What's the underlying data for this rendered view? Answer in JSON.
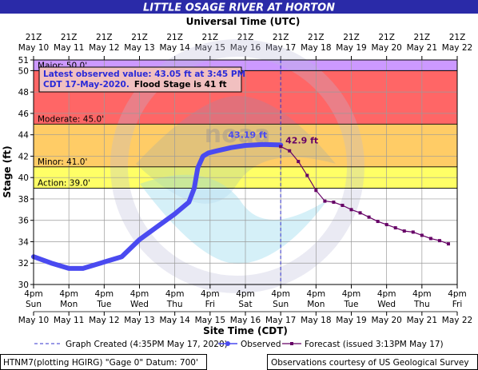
{
  "chart_data": {
    "type": "line",
    "title": "LITTLE OSAGE RIVER AT HORTON",
    "top_axis_title": "Universal Time (UTC)",
    "xlabel": "Site Time (CDT)",
    "ylabel": "Stage (ft)",
    "ylim": [
      30,
      51
    ],
    "y_ticks": [
      30,
      32,
      34,
      36,
      38,
      40,
      42,
      44,
      46,
      48,
      50,
      51
    ],
    "x_range_day": [
      0,
      12
    ],
    "day_ticks": [
      0,
      1,
      2,
      3,
      4,
      5,
      6,
      7,
      8,
      9,
      10,
      11,
      12
    ],
    "x_tick_time_label": "4pm",
    "x_tick_weekdays": [
      "Sun",
      "Mon",
      "Tue",
      "Wed",
      "Thu",
      "Fri",
      "Sat",
      "Sun",
      "Mon",
      "Tue",
      "Wed",
      "Thu",
      "Fri"
    ],
    "x_tick_dates": [
      "May 10",
      "May 11",
      "May 12",
      "May 13",
      "May 14",
      "May 15",
      "May 16",
      "May 17",
      "May 18",
      "May 19",
      "May 20",
      "May 21",
      "May 22"
    ],
    "top_tick_time_label": "21Z",
    "grid": true,
    "stage_bands": [
      {
        "name": "Major",
        "from": 50,
        "to": 51,
        "color": "#cc99ff"
      },
      {
        "name": "Moderate",
        "from": 45,
        "to": 50,
        "color": "#ff6666"
      },
      {
        "name": "Minor",
        "from": 41,
        "to": 45,
        "color": "#ffcc66"
      },
      {
        "name": "Action",
        "from": 39,
        "to": 41,
        "color": "#ffff66"
      }
    ],
    "threshold_labels": [
      {
        "text": "Major: 50.0'",
        "stage": 50.0
      },
      {
        "text": "Moderate: 45.0'",
        "stage": 45.0
      },
      {
        "text": "Minor: 41.0'",
        "stage": 41.0
      },
      {
        "text": "Action: 39.0'",
        "stage": 39.0
      }
    ],
    "series": [
      {
        "name": "Observed",
        "color": "#4a4af0",
        "x": [
          0,
          0.5,
          1.0,
          1.4,
          2.0,
          2.5,
          3.0,
          3.5,
          4.0,
          4.4,
          4.55,
          4.65,
          4.8,
          4.95,
          5.2,
          5.6,
          6.0,
          6.5,
          7.0
        ],
        "y": [
          32.6,
          32.0,
          31.5,
          31.5,
          32.1,
          32.6,
          34.2,
          35.4,
          36.6,
          37.7,
          39.0,
          40.9,
          42.0,
          42.3,
          42.5,
          42.8,
          43.0,
          43.1,
          43.05
        ]
      },
      {
        "name": "Forecast (issued 3:13PM May 17)",
        "color": "#660066",
        "x": [
          7.0,
          7.25,
          7.5,
          7.75,
          8.0,
          8.25,
          8.5,
          8.75,
          9.0,
          9.25,
          9.5,
          9.75,
          10.0,
          10.25,
          10.5,
          10.75,
          11.0,
          11.25,
          11.5,
          11.75
        ],
        "y": [
          42.9,
          42.5,
          41.5,
          40.2,
          38.8,
          37.8,
          37.7,
          37.4,
          37.0,
          36.7,
          36.3,
          35.9,
          35.6,
          35.3,
          35.0,
          34.9,
          34.6,
          34.3,
          34.1,
          33.8
        ]
      }
    ],
    "annotations": {
      "observed_value_label": "43.19 ft",
      "forecast_value_label": "42.9 ft",
      "info_line1": "Latest observed value: 43.05 ft at 3:45 PM",
      "info_line2a": "CDT 17-May-2020.",
      "info_line2b": "Flood Stage is 41 ft",
      "graph_created_x": 7.0,
      "forecast_peak_x": 7.0,
      "forecast_peak_y": 42.9
    },
    "legend": {
      "placement": "bottom",
      "graph_created": "Graph Created (4:35PM May 17, 2020)",
      "observed": "Observed",
      "forecast": "Forecast (issued 3:13PM May 17)"
    },
    "footer": {
      "left": "HTNM7(plotting HGIRG) \"Gage 0\" Datum: 700'",
      "right": "Observations courtesy of US Geological Survey"
    },
    "colors": {
      "title_bar": "#2a2aa8",
      "observed": "#4a4af0",
      "forecast": "#660066",
      "created_line": "#3333cc",
      "plot_bg": "#ffffff"
    }
  }
}
